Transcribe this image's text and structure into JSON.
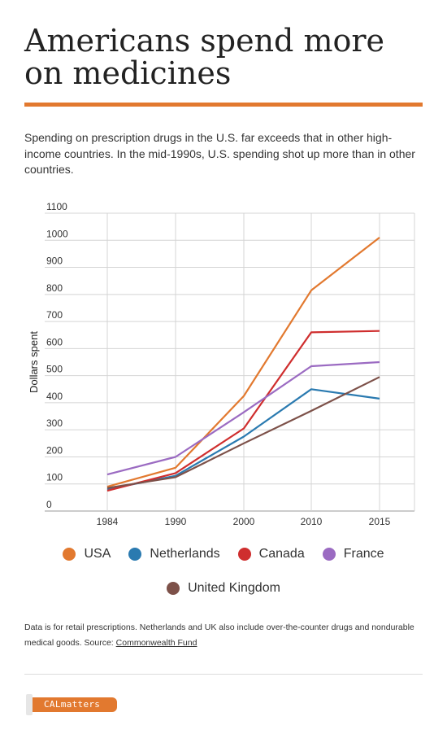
{
  "header": {
    "title": "Americans spend more on medicines",
    "subtitle": "Spending on prescription drugs in the U.S. far exceeds that in other high-income countries. In the mid-1990s, U.S. spending shot up more than in other countries."
  },
  "chart_data": {
    "type": "line",
    "x": [
      "1984",
      "1990",
      "2000",
      "2010",
      "2015"
    ],
    "xlabel": "",
    "ylabel": "Dollars spent",
    "ylim": [
      0,
      1100
    ],
    "yticks": [
      0,
      100,
      200,
      300,
      400,
      500,
      600,
      700,
      800,
      900,
      1000,
      1100
    ],
    "grid": true,
    "legend_position": "bottom",
    "series": [
      {
        "name": "USA",
        "color": "#e2792f",
        "values": [
          90,
          160,
          425,
          815,
          1010
        ]
      },
      {
        "name": "Netherlands",
        "color": "#2a7ab0",
        "values": [
          80,
          130,
          275,
          450,
          415
        ]
      },
      {
        "name": "Canada",
        "color": "#cf2e2e",
        "values": [
          75,
          140,
          305,
          660,
          665
        ]
      },
      {
        "name": "France",
        "color": "#9b6bc2",
        "values": [
          135,
          200,
          365,
          535,
          550
        ]
      },
      {
        "name": "United Kingdom",
        "color": "#7d5149",
        "values": [
          85,
          125,
          250,
          370,
          495
        ]
      }
    ]
  },
  "footnote": {
    "text": "Data is for retail prescriptions. Netherlands and UK also include over-the-counter drugs and nondurable medical goods. Source: ",
    "source_link": "Commonwealth Fund"
  },
  "logo": {
    "text": "CALmatters"
  }
}
